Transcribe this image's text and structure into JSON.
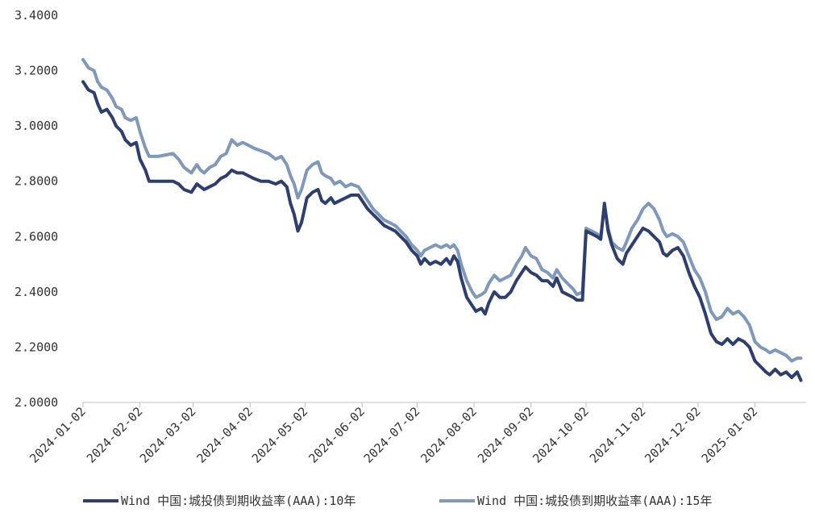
{
  "chart_data": {
    "type": "line",
    "title": "",
    "xlabel": "",
    "ylabel": "",
    "ylim": [
      2.0,
      3.4
    ],
    "yticks": [
      "2.0000",
      "2.2000",
      "2.4000",
      "2.6000",
      "2.8000",
      "3.0000",
      "3.2000",
      "3.4000"
    ],
    "xlim": [
      "2024-01-02",
      "2025-01-27"
    ],
    "xticks": [
      "2024-01-02",
      "2024-02-02",
      "2024-03-02",
      "2024-04-02",
      "2024-05-02",
      "2024-06-02",
      "2024-07-02",
      "2024-08-02",
      "2024-09-02",
      "2024-10-02",
      "2024-11-02",
      "2024-12-02",
      "2025-01-02"
    ],
    "grid": false,
    "legend_position": "bottom",
    "series": [
      {
        "name": "Wind 中国:城投债到期收益率(AAA):10年",
        "color": "#2E3F6E",
        "points": [
          [
            "2024-01-02",
            3.16
          ],
          [
            "2024-01-05",
            3.13
          ],
          [
            "2024-01-08",
            3.12
          ],
          [
            "2024-01-10",
            3.08
          ],
          [
            "2024-01-12",
            3.05
          ],
          [
            "2024-01-15",
            3.06
          ],
          [
            "2024-01-18",
            3.03
          ],
          [
            "2024-01-20",
            3.0
          ],
          [
            "2024-01-23",
            2.98
          ],
          [
            "2024-01-25",
            2.95
          ],
          [
            "2024-01-28",
            2.93
          ],
          [
            "2024-01-31",
            2.94
          ],
          [
            "2024-02-02",
            2.88
          ],
          [
            "2024-02-05",
            2.84
          ],
          [
            "2024-02-07",
            2.8
          ],
          [
            "2024-02-12",
            2.8
          ],
          [
            "2024-02-20",
            2.8
          ],
          [
            "2024-02-23",
            2.79
          ],
          [
            "2024-02-26",
            2.77
          ],
          [
            "2024-03-01",
            2.76
          ],
          [
            "2024-03-04",
            2.79
          ],
          [
            "2024-03-06",
            2.78
          ],
          [
            "2024-03-08",
            2.77
          ],
          [
            "2024-03-11",
            2.78
          ],
          [
            "2024-03-14",
            2.79
          ],
          [
            "2024-03-17",
            2.81
          ],
          [
            "2024-03-20",
            2.82
          ],
          [
            "2024-03-23",
            2.84
          ],
          [
            "2024-03-26",
            2.83
          ],
          [
            "2024-03-29",
            2.83
          ],
          [
            "2024-04-01",
            2.82
          ],
          [
            "2024-04-04",
            2.81
          ],
          [
            "2024-04-08",
            2.8
          ],
          [
            "2024-04-12",
            2.8
          ],
          [
            "2024-04-16",
            2.79
          ],
          [
            "2024-04-19",
            2.8
          ],
          [
            "2024-04-22",
            2.78
          ],
          [
            "2024-04-24",
            2.72
          ],
          [
            "2024-04-26",
            2.68
          ],
          [
            "2024-04-28",
            2.62
          ],
          [
            "2024-04-30",
            2.65
          ],
          [
            "2024-05-03",
            2.74
          ],
          [
            "2024-05-06",
            2.76
          ],
          [
            "2024-05-09",
            2.77
          ],
          [
            "2024-05-11",
            2.73
          ],
          [
            "2024-05-13",
            2.72
          ],
          [
            "2024-05-16",
            2.74
          ],
          [
            "2024-05-18",
            2.72
          ],
          [
            "2024-05-21",
            2.73
          ],
          [
            "2024-05-24",
            2.74
          ],
          [
            "2024-05-27",
            2.75
          ],
          [
            "2024-05-31",
            2.75
          ],
          [
            "2024-06-03",
            2.72
          ],
          [
            "2024-06-05",
            2.7
          ],
          [
            "2024-06-08",
            2.68
          ],
          [
            "2024-06-11",
            2.66
          ],
          [
            "2024-06-14",
            2.64
          ],
          [
            "2024-06-17",
            2.63
          ],
          [
            "2024-06-20",
            2.62
          ],
          [
            "2024-06-23",
            2.6
          ],
          [
            "2024-06-26",
            2.58
          ],
          [
            "2024-06-29",
            2.55
          ],
          [
            "2024-07-02",
            2.53
          ],
          [
            "2024-07-04",
            2.5
          ],
          [
            "2024-07-06",
            2.52
          ],
          [
            "2024-07-09",
            2.5
          ],
          [
            "2024-07-12",
            2.51
          ],
          [
            "2024-07-15",
            2.5
          ],
          [
            "2024-07-18",
            2.52
          ],
          [
            "2024-07-20",
            2.5
          ],
          [
            "2024-07-22",
            2.53
          ],
          [
            "2024-07-24",
            2.51
          ],
          [
            "2024-07-26",
            2.45
          ],
          [
            "2024-07-29",
            2.38
          ],
          [
            "2024-08-01",
            2.35
          ],
          [
            "2024-08-03",
            2.33
          ],
          [
            "2024-08-06",
            2.34
          ],
          [
            "2024-08-08",
            2.32
          ],
          [
            "2024-08-10",
            2.36
          ],
          [
            "2024-08-13",
            2.4
          ],
          [
            "2024-08-16",
            2.38
          ],
          [
            "2024-08-19",
            2.38
          ],
          [
            "2024-08-22",
            2.4
          ],
          [
            "2024-08-25",
            2.44
          ],
          [
            "2024-08-28",
            2.47
          ],
          [
            "2024-08-30",
            2.49
          ],
          [
            "2024-09-02",
            2.47
          ],
          [
            "2024-09-05",
            2.46
          ],
          [
            "2024-09-08",
            2.44
          ],
          [
            "2024-09-11",
            2.44
          ],
          [
            "2024-09-14",
            2.42
          ],
          [
            "2024-09-16",
            2.45
          ],
          [
            "2024-09-19",
            2.4
          ],
          [
            "2024-09-22",
            2.39
          ],
          [
            "2024-09-25",
            2.38
          ],
          [
            "2024-09-27",
            2.37
          ],
          [
            "2024-09-30",
            2.37
          ],
          [
            "2024-10-02",
            2.62
          ],
          [
            "2024-10-05",
            2.61
          ],
          [
            "2024-10-08",
            2.6
          ],
          [
            "2024-10-10",
            2.59
          ],
          [
            "2024-10-12",
            2.72
          ],
          [
            "2024-10-14",
            2.62
          ],
          [
            "2024-10-16",
            2.57
          ],
          [
            "2024-10-19",
            2.52
          ],
          [
            "2024-10-22",
            2.5
          ],
          [
            "2024-10-24",
            2.54
          ],
          [
            "2024-10-27",
            2.57
          ],
          [
            "2024-10-30",
            2.6
          ],
          [
            "2024-11-02",
            2.63
          ],
          [
            "2024-11-05",
            2.62
          ],
          [
            "2024-11-08",
            2.6
          ],
          [
            "2024-11-11",
            2.58
          ],
          [
            "2024-11-13",
            2.54
          ],
          [
            "2024-11-15",
            2.53
          ],
          [
            "2024-11-18",
            2.55
          ],
          [
            "2024-11-21",
            2.56
          ],
          [
            "2024-11-24",
            2.53
          ],
          [
            "2024-11-27",
            2.47
          ],
          [
            "2024-11-30",
            2.42
          ],
          [
            "2024-12-03",
            2.38
          ],
          [
            "2024-12-06",
            2.32
          ],
          [
            "2024-12-09",
            2.25
          ],
          [
            "2024-12-12",
            2.22
          ],
          [
            "2024-12-15",
            2.21
          ],
          [
            "2024-12-18",
            2.23
          ],
          [
            "2024-12-21",
            2.21
          ],
          [
            "2024-12-24",
            2.23
          ],
          [
            "2024-12-27",
            2.22
          ],
          [
            "2024-12-30",
            2.2
          ],
          [
            "2025-01-02",
            2.15
          ],
          [
            "2025-01-05",
            2.13
          ],
          [
            "2025-01-08",
            2.11
          ],
          [
            "2025-01-10",
            2.1
          ],
          [
            "2025-01-13",
            2.12
          ],
          [
            "2025-01-16",
            2.1
          ],
          [
            "2025-01-19",
            2.11
          ],
          [
            "2025-01-22",
            2.09
          ],
          [
            "2025-01-25",
            2.11
          ],
          [
            "2025-01-27",
            2.08
          ]
        ]
      },
      {
        "name": "Wind 中国:城投债到期收益率(AAA):15年",
        "color": "#8099B8",
        "points": [
          [
            "2024-01-02",
            3.24
          ],
          [
            "2024-01-05",
            3.21
          ],
          [
            "2024-01-08",
            3.2
          ],
          [
            "2024-01-10",
            3.16
          ],
          [
            "2024-01-12",
            3.14
          ],
          [
            "2024-01-15",
            3.13
          ],
          [
            "2024-01-18",
            3.1
          ],
          [
            "2024-01-20",
            3.07
          ],
          [
            "2024-01-23",
            3.06
          ],
          [
            "2024-01-25",
            3.03
          ],
          [
            "2024-01-28",
            3.02
          ],
          [
            "2024-01-31",
            3.03
          ],
          [
            "2024-02-02",
            2.98
          ],
          [
            "2024-02-05",
            2.92
          ],
          [
            "2024-02-07",
            2.89
          ],
          [
            "2024-02-12",
            2.89
          ],
          [
            "2024-02-20",
            2.9
          ],
          [
            "2024-02-23",
            2.88
          ],
          [
            "2024-02-26",
            2.85
          ],
          [
            "2024-03-01",
            2.83
          ],
          [
            "2024-03-04",
            2.86
          ],
          [
            "2024-03-06",
            2.84
          ],
          [
            "2024-03-08",
            2.83
          ],
          [
            "2024-03-11",
            2.85
          ],
          [
            "2024-03-14",
            2.86
          ],
          [
            "2024-03-17",
            2.89
          ],
          [
            "2024-03-20",
            2.9
          ],
          [
            "2024-03-23",
            2.95
          ],
          [
            "2024-03-26",
            2.93
          ],
          [
            "2024-03-29",
            2.94
          ],
          [
            "2024-04-01",
            2.93
          ],
          [
            "2024-04-04",
            2.92
          ],
          [
            "2024-04-08",
            2.91
          ],
          [
            "2024-04-12",
            2.9
          ],
          [
            "2024-04-16",
            2.88
          ],
          [
            "2024-04-19",
            2.89
          ],
          [
            "2024-04-22",
            2.86
          ],
          [
            "2024-04-24",
            2.82
          ],
          [
            "2024-04-26",
            2.79
          ],
          [
            "2024-04-28",
            2.74
          ],
          [
            "2024-04-30",
            2.77
          ],
          [
            "2024-05-03",
            2.84
          ],
          [
            "2024-05-06",
            2.86
          ],
          [
            "2024-05-09",
            2.87
          ],
          [
            "2024-05-11",
            2.83
          ],
          [
            "2024-05-13",
            2.82
          ],
          [
            "2024-05-16",
            2.81
          ],
          [
            "2024-05-18",
            2.79
          ],
          [
            "2024-05-21",
            2.8
          ],
          [
            "2024-05-24",
            2.78
          ],
          [
            "2024-05-27",
            2.79
          ],
          [
            "2024-05-31",
            2.78
          ],
          [
            "2024-06-03",
            2.75
          ],
          [
            "2024-06-05",
            2.73
          ],
          [
            "2024-06-08",
            2.7
          ],
          [
            "2024-06-11",
            2.68
          ],
          [
            "2024-06-14",
            2.66
          ],
          [
            "2024-06-17",
            2.65
          ],
          [
            "2024-06-20",
            2.64
          ],
          [
            "2024-06-23",
            2.62
          ],
          [
            "2024-06-26",
            2.6
          ],
          [
            "2024-06-29",
            2.57
          ],
          [
            "2024-07-02",
            2.55
          ],
          [
            "2024-07-04",
            2.53
          ],
          [
            "2024-07-06",
            2.55
          ],
          [
            "2024-07-09",
            2.56
          ],
          [
            "2024-07-12",
            2.57
          ],
          [
            "2024-07-15",
            2.56
          ],
          [
            "2024-07-18",
            2.57
          ],
          [
            "2024-07-20",
            2.56
          ],
          [
            "2024-07-22",
            2.57
          ],
          [
            "2024-07-24",
            2.55
          ],
          [
            "2024-07-26",
            2.5
          ],
          [
            "2024-07-29",
            2.44
          ],
          [
            "2024-08-01",
            2.4
          ],
          [
            "2024-08-03",
            2.38
          ],
          [
            "2024-08-06",
            2.39
          ],
          [
            "2024-08-08",
            2.4
          ],
          [
            "2024-08-10",
            2.43
          ],
          [
            "2024-08-13",
            2.46
          ],
          [
            "2024-08-16",
            2.44
          ],
          [
            "2024-08-19",
            2.45
          ],
          [
            "2024-08-22",
            2.46
          ],
          [
            "2024-08-25",
            2.5
          ],
          [
            "2024-08-28",
            2.53
          ],
          [
            "2024-08-30",
            2.56
          ],
          [
            "2024-09-02",
            2.53
          ],
          [
            "2024-09-05",
            2.52
          ],
          [
            "2024-09-08",
            2.48
          ],
          [
            "2024-09-11",
            2.47
          ],
          [
            "2024-09-14",
            2.45
          ],
          [
            "2024-09-16",
            2.48
          ],
          [
            "2024-09-19",
            2.45
          ],
          [
            "2024-09-22",
            2.43
          ],
          [
            "2024-09-25",
            2.41
          ],
          [
            "2024-09-27",
            2.39
          ],
          [
            "2024-09-30",
            2.4
          ],
          [
            "2024-10-02",
            2.63
          ],
          [
            "2024-10-05",
            2.62
          ],
          [
            "2024-10-08",
            2.61
          ],
          [
            "2024-10-10",
            2.6
          ],
          [
            "2024-10-12",
            2.71
          ],
          [
            "2024-10-14",
            2.63
          ],
          [
            "2024-10-16",
            2.58
          ],
          [
            "2024-10-19",
            2.56
          ],
          [
            "2024-10-22",
            2.55
          ],
          [
            "2024-10-24",
            2.58
          ],
          [
            "2024-10-27",
            2.63
          ],
          [
            "2024-10-30",
            2.66
          ],
          [
            "2024-11-02",
            2.7
          ],
          [
            "2024-11-05",
            2.72
          ],
          [
            "2024-11-08",
            2.7
          ],
          [
            "2024-11-11",
            2.66
          ],
          [
            "2024-11-13",
            2.62
          ],
          [
            "2024-11-15",
            2.6
          ],
          [
            "2024-11-18",
            2.61
          ],
          [
            "2024-11-21",
            2.6
          ],
          [
            "2024-11-24",
            2.58
          ],
          [
            "2024-11-27",
            2.53
          ],
          [
            "2024-11-30",
            2.48
          ],
          [
            "2024-12-03",
            2.45
          ],
          [
            "2024-12-06",
            2.4
          ],
          [
            "2024-12-09",
            2.33
          ],
          [
            "2024-12-12",
            2.3
          ],
          [
            "2024-12-15",
            2.31
          ],
          [
            "2024-12-18",
            2.34
          ],
          [
            "2024-12-21",
            2.32
          ],
          [
            "2024-12-24",
            2.33
          ],
          [
            "2024-12-27",
            2.31
          ],
          [
            "2024-12-30",
            2.28
          ],
          [
            "2025-01-02",
            2.22
          ],
          [
            "2025-01-05",
            2.2
          ],
          [
            "2025-01-08",
            2.19
          ],
          [
            "2025-01-10",
            2.18
          ],
          [
            "2025-01-13",
            2.19
          ],
          [
            "2025-01-16",
            2.18
          ],
          [
            "2025-01-19",
            2.17
          ],
          [
            "2025-01-22",
            2.15
          ],
          [
            "2025-01-25",
            2.16
          ],
          [
            "2025-01-27",
            2.16
          ]
        ]
      }
    ]
  }
}
